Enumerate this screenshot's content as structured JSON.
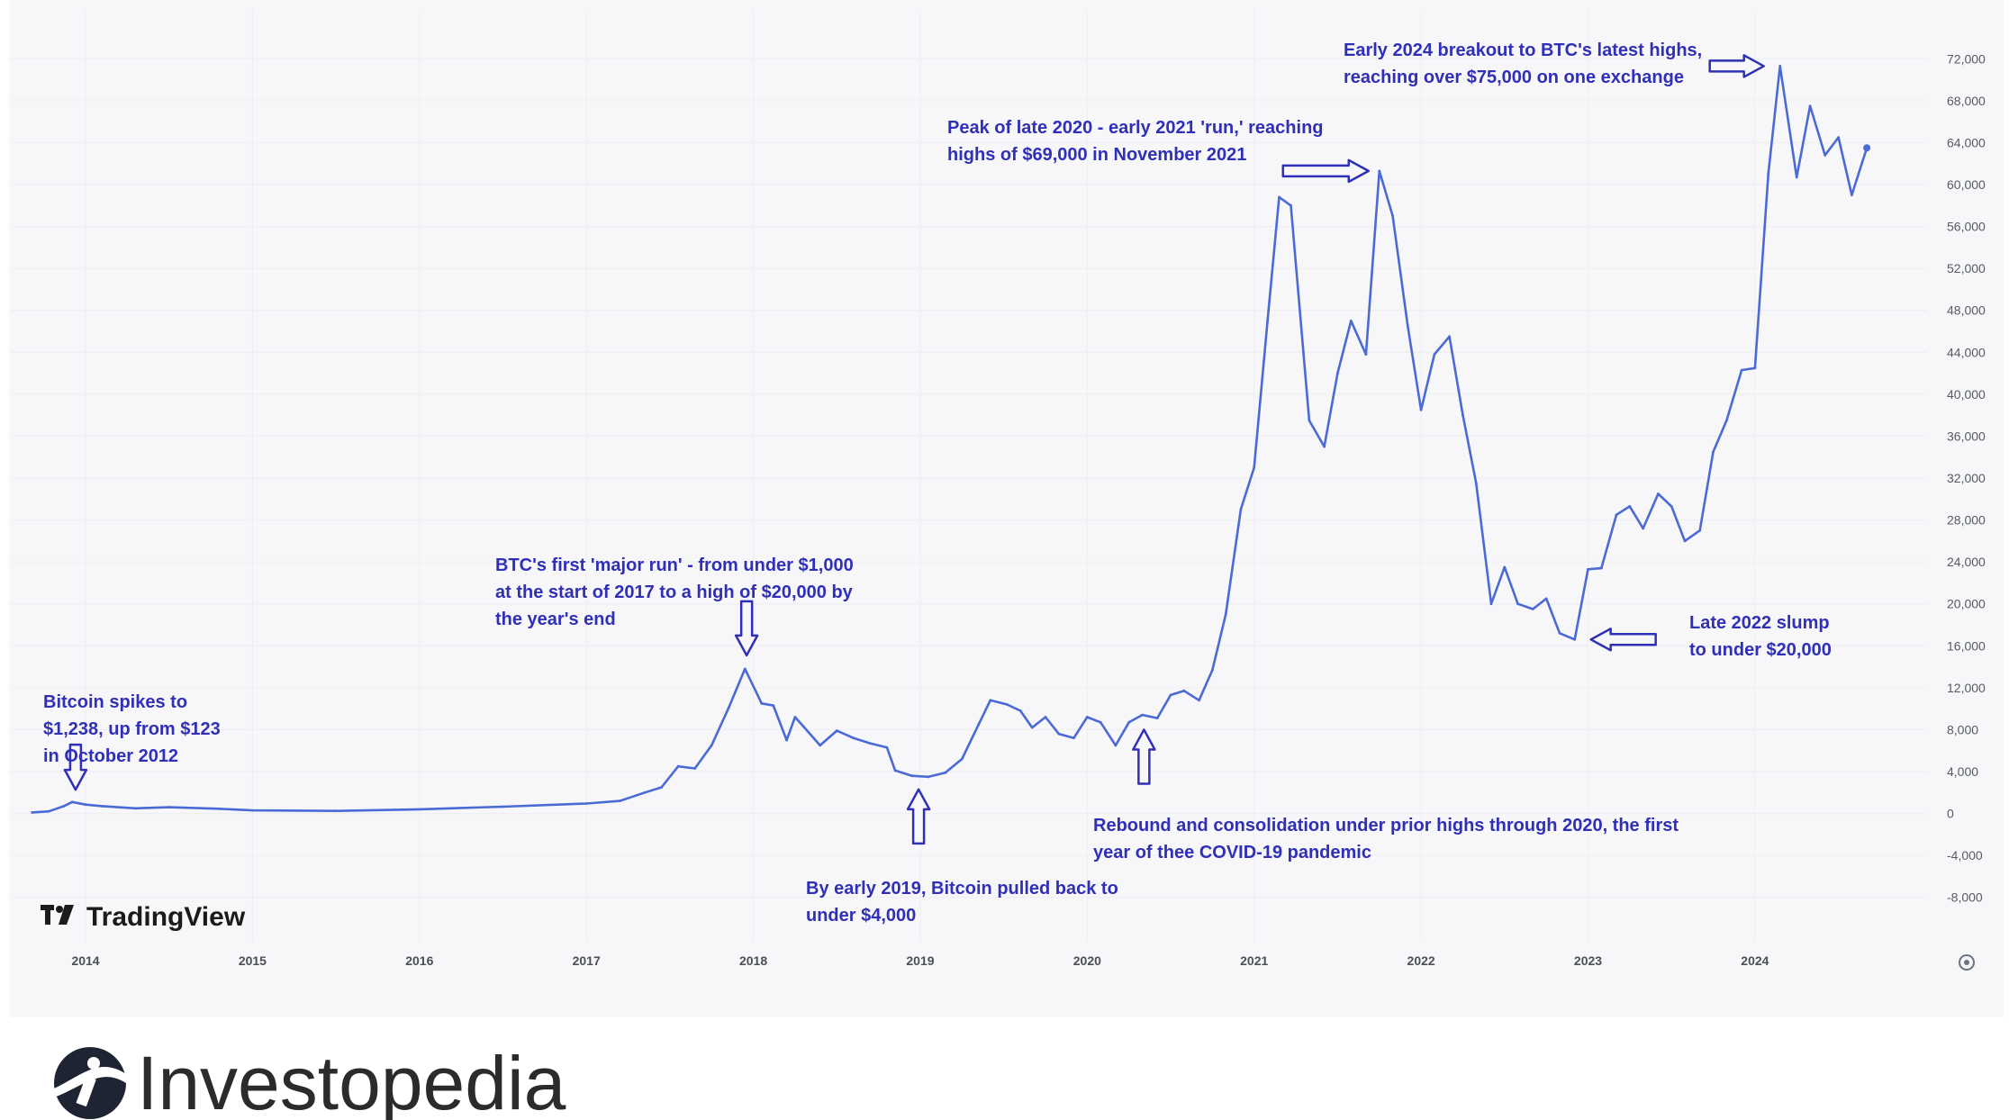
{
  "brand": {
    "chart_source": "TradingView",
    "publisher": "Investopedia"
  },
  "colors": {
    "line": "#4b6ad6",
    "annotation": "#2f2fb8",
    "panel": "#f7f7f9",
    "grid": "#eceef2"
  },
  "chart_data": {
    "type": "line",
    "title": "",
    "xlabel": "",
    "ylabel": "",
    "grid": true,
    "legend": "none",
    "xlim": [
      2013.66,
      2024.95
    ],
    "ylim": [
      -10000,
      74000
    ],
    "x_ticks": [
      {
        "label": "2014",
        "x": 2014
      },
      {
        "label": "2015",
        "x": 2015
      },
      {
        "label": "2016",
        "x": 2016
      },
      {
        "label": "2017",
        "x": 2017
      },
      {
        "label": "2018",
        "x": 2018
      },
      {
        "label": "2019",
        "x": 2019
      },
      {
        "label": "2020",
        "x": 2020
      },
      {
        "label": "2021",
        "x": 2021
      },
      {
        "label": "2022",
        "x": 2022
      },
      {
        "label": "2023",
        "x": 2023
      },
      {
        "label": "2024",
        "x": 2024
      }
    ],
    "y_ticks": [
      {
        "label": "72,000",
        "v": 72000
      },
      {
        "label": "68,000",
        "v": 68000
      },
      {
        "label": "64,000",
        "v": 64000
      },
      {
        "label": "60,000",
        "v": 60000
      },
      {
        "label": "56,000",
        "v": 56000
      },
      {
        "label": "52,000",
        "v": 52000
      },
      {
        "label": "48,000",
        "v": 48000
      },
      {
        "label": "44,000",
        "v": 44000
      },
      {
        "label": "40,000",
        "v": 40000
      },
      {
        "label": "36,000",
        "v": 36000
      },
      {
        "label": "32,000",
        "v": 32000
      },
      {
        "label": "28,000",
        "v": 28000
      },
      {
        "label": "24,000",
        "v": 24000
      },
      {
        "label": "20,000",
        "v": 20000
      },
      {
        "label": "16,000",
        "v": 16000
      },
      {
        "label": "12,000",
        "v": 12000
      },
      {
        "label": "8,000",
        "v": 8000
      },
      {
        "label": "4,000",
        "v": 4000
      },
      {
        "label": "0",
        "v": 0
      },
      {
        "label": "-4,000",
        "v": -4000
      },
      {
        "label": "-8,000",
        "v": -8000
      }
    ],
    "series": [
      {
        "points": [
          [
            2013.68,
            100
          ],
          [
            2013.78,
            200
          ],
          [
            2013.87,
            700
          ],
          [
            2013.92,
            1100
          ],
          [
            2014.0,
            850
          ],
          [
            2014.1,
            700
          ],
          [
            2014.3,
            500
          ],
          [
            2014.5,
            600
          ],
          [
            2014.8,
            450
          ],
          [
            2015.0,
            300
          ],
          [
            2015.5,
            250
          ],
          [
            2016.0,
            400
          ],
          [
            2016.5,
            650
          ],
          [
            2017.0,
            950
          ],
          [
            2017.2,
            1200
          ],
          [
            2017.35,
            2000
          ],
          [
            2017.45,
            2500
          ],
          [
            2017.55,
            4500
          ],
          [
            2017.65,
            4300
          ],
          [
            2017.75,
            6500
          ],
          [
            2017.85,
            10000
          ],
          [
            2017.95,
            13800
          ],
          [
            2018.05,
            10500
          ],
          [
            2018.12,
            10300
          ],
          [
            2018.2,
            7000
          ],
          [
            2018.25,
            9200
          ],
          [
            2018.3,
            8300
          ],
          [
            2018.4,
            6500
          ],
          [
            2018.5,
            7900
          ],
          [
            2018.6,
            7200
          ],
          [
            2018.7,
            6700
          ],
          [
            2018.8,
            6300
          ],
          [
            2018.85,
            4100
          ],
          [
            2018.95,
            3600
          ],
          [
            2019.05,
            3500
          ],
          [
            2019.15,
            3900
          ],
          [
            2019.25,
            5200
          ],
          [
            2019.35,
            8500
          ],
          [
            2019.42,
            10800
          ],
          [
            2019.52,
            10400
          ],
          [
            2019.6,
            9800
          ],
          [
            2019.67,
            8200
          ],
          [
            2019.75,
            9200
          ],
          [
            2019.83,
            7600
          ],
          [
            2019.92,
            7200
          ],
          [
            2020.0,
            9200
          ],
          [
            2020.08,
            8700
          ],
          [
            2020.17,
            6500
          ],
          [
            2020.25,
            8700
          ],
          [
            2020.33,
            9400
          ],
          [
            2020.42,
            9100
          ],
          [
            2020.5,
            11300
          ],
          [
            2020.58,
            11700
          ],
          [
            2020.67,
            10800
          ],
          [
            2020.75,
            13700
          ],
          [
            2020.83,
            19000
          ],
          [
            2020.92,
            29000
          ],
          [
            2021.0,
            33000
          ],
          [
            2021.08,
            47000
          ],
          [
            2021.15,
            58800
          ],
          [
            2021.22,
            58000
          ],
          [
            2021.33,
            37500
          ],
          [
            2021.42,
            35000
          ],
          [
            2021.5,
            42000
          ],
          [
            2021.58,
            47000
          ],
          [
            2021.67,
            43800
          ],
          [
            2021.75,
            61300
          ],
          [
            2021.83,
            57000
          ],
          [
            2021.92,
            46500
          ],
          [
            2022.0,
            38500
          ],
          [
            2022.08,
            43800
          ],
          [
            2022.17,
            45500
          ],
          [
            2022.25,
            38000
          ],
          [
            2022.33,
            31500
          ],
          [
            2022.42,
            20000
          ],
          [
            2022.5,
            23500
          ],
          [
            2022.58,
            20000
          ],
          [
            2022.67,
            19500
          ],
          [
            2022.75,
            20500
          ],
          [
            2022.83,
            17200
          ],
          [
            2022.92,
            16600
          ],
          [
            2023.0,
            23300
          ],
          [
            2023.08,
            23400
          ],
          [
            2023.17,
            28500
          ],
          [
            2023.25,
            29300
          ],
          [
            2023.33,
            27200
          ],
          [
            2023.42,
            30500
          ],
          [
            2023.5,
            29300
          ],
          [
            2023.58,
            26000
          ],
          [
            2023.67,
            27000
          ],
          [
            2023.75,
            34500
          ],
          [
            2023.83,
            37500
          ],
          [
            2023.92,
            42300
          ],
          [
            2024.0,
            42500
          ],
          [
            2024.08,
            61000
          ],
          [
            2024.15,
            71300
          ],
          [
            2024.25,
            60700
          ],
          [
            2024.33,
            67500
          ],
          [
            2024.42,
            62800
          ],
          [
            2024.5,
            64500
          ],
          [
            2024.58,
            59000
          ],
          [
            2024.67,
            63500
          ]
        ]
      }
    ],
    "annotations": [
      {
        "lines": [
          "Bitcoin spikes to",
          "$1,238, up from $123",
          "in October 2012"
        ],
        "x": 2013.94,
        "v": 1238
      },
      {
        "lines": [
          "BTC's first 'major run' - from under $1,000",
          "at the start of 2017 to a high of $20,000 by",
          "the year's end"
        ],
        "x": 2017.96,
        "v": 13800
      },
      {
        "lines": [
          "By early 2019, Bitcoin pulled back to",
          "under $4,000"
        ],
        "x": 2018.99,
        "v": 3500
      },
      {
        "lines": [
          "Rebound and consolidation under prior highs through 2020, the first",
          "year of thee COVID-19 pandemic"
        ],
        "x": 2020.34,
        "v": 9200
      },
      {
        "lines": [
          "Peak of late 2020 - early 2021 'run,' reaching",
          "highs of $69,000 in November 2021"
        ],
        "x": 2021.75,
        "v": 61300
      },
      {
        "lines": [
          "Late 2022 slump",
          "to under $20,000"
        ],
        "x": 2022.92,
        "v": 16600
      },
      {
        "lines": [
          "Early 2024 breakout to BTC's latest highs,",
          "reaching over $75,000 on one exchange"
        ],
        "x": 2024.15,
        "v": 71300
      }
    ]
  }
}
